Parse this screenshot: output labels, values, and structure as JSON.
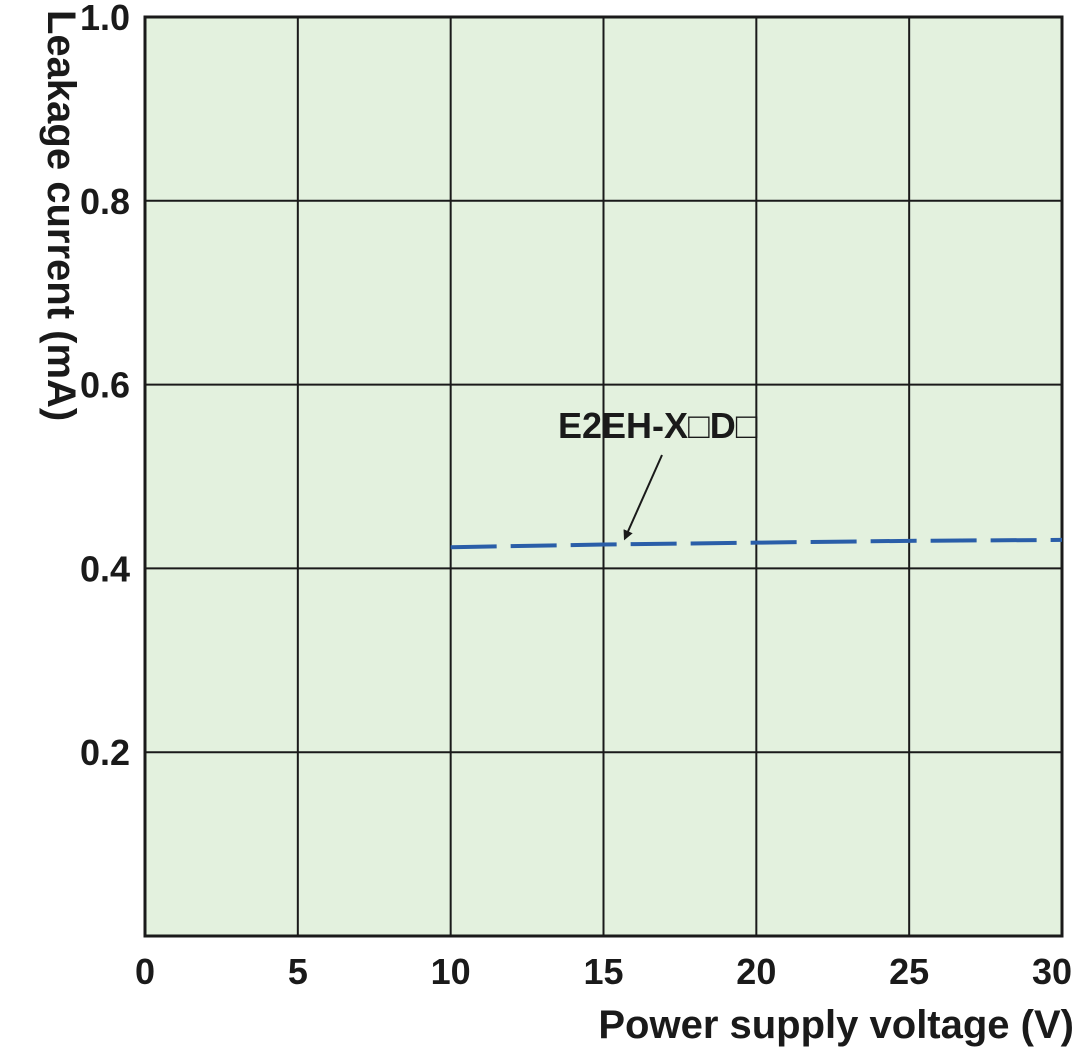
{
  "chart_data": {
    "type": "line",
    "xlabel": "Power supply voltage (V)",
    "ylabel": "Leakage current (mA)",
    "xlim": [
      0,
      30
    ],
    "ylim": [
      0,
      1.0
    ],
    "x_ticks": [
      "0",
      "5",
      "10",
      "15",
      "20",
      "25",
      "30"
    ],
    "y_ticks": [
      "0.2",
      "0.4",
      "0.6",
      "0.8",
      "1.0"
    ],
    "grid": true,
    "series": [
      {
        "x": [
          10,
          15,
          20,
          25,
          30
        ],
        "values": [
          0.423,
          0.426,
          0.428,
          0.43,
          0.431
        ],
        "style": "dashed",
        "color": "#2a5ea8"
      }
    ],
    "annotations": [
      {
        "text": "E2EH-X□D□",
        "points_to": {
          "x": 15.6,
          "y": 0.426
        }
      }
    ],
    "background_color": "#e3f1de",
    "grid_color": "#1a1a1a"
  }
}
